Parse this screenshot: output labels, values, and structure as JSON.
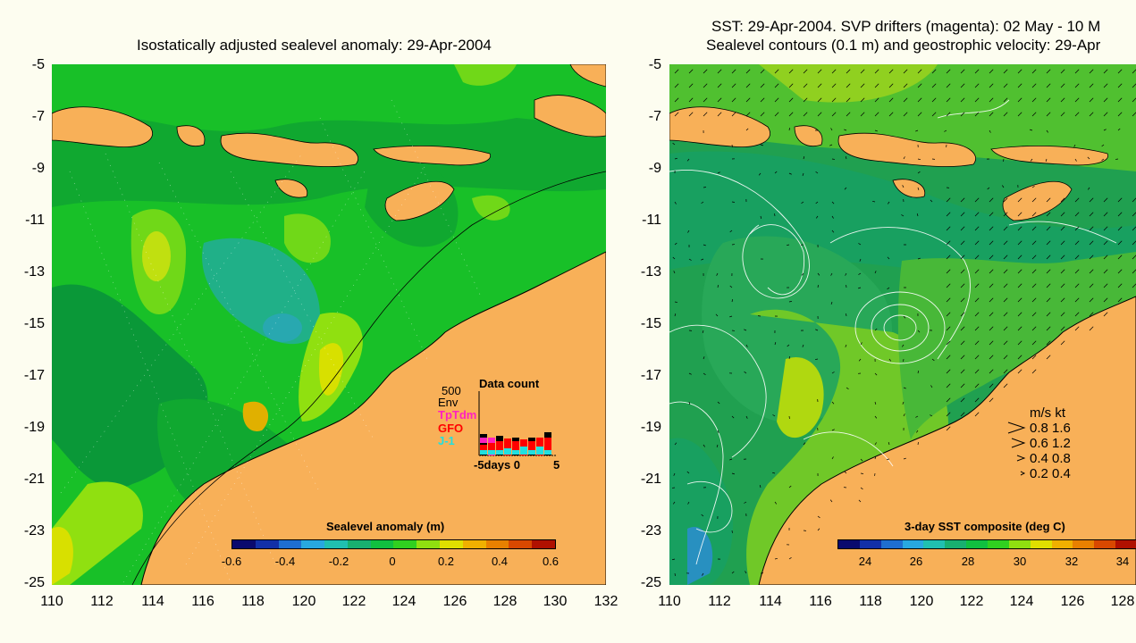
{
  "left_panel": {
    "title": "Isostatically adjusted sealevel anomaly: 29-Apr-2004",
    "colorbar": {
      "title": "Sealevel anomaly (m)",
      "ticks": [
        "-0.6",
        "-0.4",
        "-0.2",
        "0",
        "0.2",
        "0.4",
        "0.6"
      ],
      "colors": [
        "#0a0a6e",
        "#1230a8",
        "#1e6ed0",
        "#28a8e0",
        "#20c0b0",
        "#18b070",
        "#10c040",
        "#30d020",
        "#90e010",
        "#e0e000",
        "#f0b000",
        "#e88000",
        "#d84800",
        "#b01000"
      ]
    },
    "data_count": {
      "title": "Data count",
      "max_label": "500",
      "missions": [
        {
          "name": "Env",
          "color": "#000000"
        },
        {
          "name": "TpTdm",
          "color": "#ff20c0"
        },
        {
          "name": "GFO",
          "color": "#ff0000"
        },
        {
          "name": "J-1",
          "color": "#20e0e0"
        }
      ],
      "xaxis_label": "-5days 0",
      "xaxis_end": "5"
    }
  },
  "right_panel": {
    "title_line1": "SST: 29-Apr-2004. SVP drifters (magenta): 02 May - 10 M",
    "title_line2": "Sealevel contours (0.1 m) and geostrophic velocity: 29-Apr",
    "colorbar": {
      "title": "3-day SST composite (deg C)",
      "ticks": [
        "24",
        "26",
        "28",
        "30",
        "32",
        "34"
      ],
      "colors": [
        "#0a0a6e",
        "#1230a8",
        "#1e6ed0",
        "#28a8e0",
        "#20c0b0",
        "#18b070",
        "#10c040",
        "#30d020",
        "#90e010",
        "#e0e000",
        "#f0b000",
        "#e88000",
        "#d84800",
        "#b01000"
      ]
    },
    "velocity_legend": {
      "header": "m/s  kt",
      "rows": [
        "0.8  1.6",
        "0.6  1.2",
        "0.4  0.8",
        "0.2  0.4"
      ]
    }
  },
  "axes": {
    "y_ticks": [
      "-5",
      "-7",
      "-9",
      "-11",
      "-13",
      "-15",
      "-17",
      "-19",
      "-21",
      "-23",
      "-25"
    ],
    "x_ticks_left": [
      "110",
      "112",
      "114",
      "116",
      "118",
      "120",
      "122",
      "124",
      "126",
      "128",
      "130",
      "132"
    ],
    "x_ticks_right": [
      "110",
      "112",
      "114",
      "116",
      "118",
      "120",
      "122",
      "124",
      "126",
      "128"
    ]
  },
  "colors": {
    "land": "#f8b058",
    "background": "#fdfdf0",
    "sla_base": "#18c028",
    "sst_base": "#20a050"
  }
}
